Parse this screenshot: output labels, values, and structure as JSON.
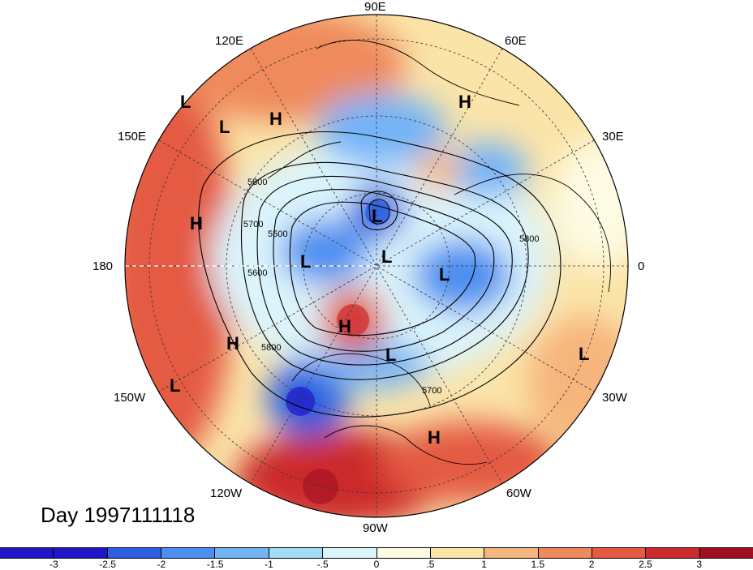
{
  "map": {
    "title": "Day 1997111118",
    "projection": "north polar stereographic",
    "longitude_labels": [
      "90E",
      "60E",
      "30E",
      "0",
      "30W",
      "60W",
      "90W",
      "120W",
      "150W",
      "180",
      "150E",
      "120E"
    ],
    "contour_labels": [
      "5800",
      "5700",
      "5500",
      "5600",
      "5800",
      "5700",
      "5800"
    ],
    "pressure_centers": [
      "L",
      "L",
      "H",
      "H",
      "H",
      "L",
      "L",
      "L",
      "L",
      "H",
      "H",
      "L",
      "L",
      "H",
      "L"
    ],
    "colorbar": {
      "ticks": [
        "-3",
        "-2.5",
        "-2",
        "-1.5",
        "-1",
        "-.5",
        "0",
        ".5",
        "1",
        "1.5",
        "2",
        "2.5",
        "3"
      ],
      "colors": [
        "#1f16c9",
        "#2b5fe0",
        "#4b8ff0",
        "#73b4f7",
        "#a3dcf8",
        "#dbf4fb",
        "#fdfbe3",
        "#fbe4a8",
        "#f6b57c",
        "#ef8a5c",
        "#e45a42",
        "#cc2a2c",
        "#9e1021"
      ]
    }
  }
}
